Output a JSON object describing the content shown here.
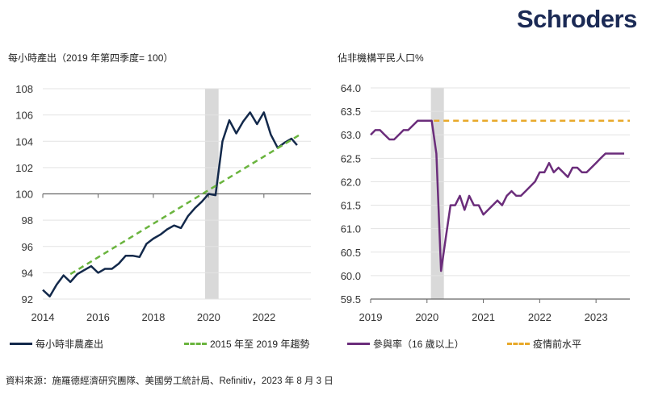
{
  "brand": "Schroders",
  "source": "資料來源：施羅德經濟研究團隊、美國勞工統計局、Refinitiv，2023 年 8 月 3 日",
  "colors": {
    "navy": "#13294b",
    "green": "#6ab43e",
    "purple": "#6b2d7b",
    "orange": "#e8a92a",
    "shade": "#d9d9d9",
    "grid": "#e3e3e3"
  },
  "chart_data": [
    {
      "type": "line",
      "title": "每小時產出（2019 年第四季度= 100）",
      "xlim": [
        2014,
        2023.7
      ],
      "ylim": [
        92,
        108
      ],
      "xticks": [
        "2014",
        "2016",
        "2018",
        "2020",
        "2022"
      ],
      "yticks": [
        "92",
        "94",
        "96",
        "98",
        "100",
        "102",
        "104",
        "106",
        "108"
      ],
      "shaded": [
        2019.87,
        2020.36
      ],
      "series": [
        {
          "name": "每小時非農產出",
          "style": "solid",
          "color": "#13294b",
          "x": [
            2014,
            2014.25,
            2014.5,
            2014.75,
            2015,
            2015.25,
            2015.5,
            2015.75,
            2016,
            2016.25,
            2016.5,
            2016.75,
            2017,
            2017.25,
            2017.5,
            2017.75,
            2018,
            2018.25,
            2018.5,
            2018.75,
            2019,
            2019.25,
            2019.5,
            2019.75,
            2020,
            2020.25,
            2020.5,
            2020.75,
            2021,
            2021.25,
            2021.5,
            2021.75,
            2022,
            2022.25,
            2022.5,
            2022.75,
            2023,
            2023.2
          ],
          "y": [
            92.7,
            92.2,
            93.1,
            93.8,
            93.3,
            93.9,
            94.2,
            94.5,
            94.0,
            94.3,
            94.3,
            94.7,
            95.3,
            95.3,
            95.2,
            96.2,
            96.6,
            96.9,
            97.3,
            97.6,
            97.4,
            98.3,
            98.9,
            99.4,
            100.0,
            99.9,
            104.0,
            105.6,
            104.6,
            105.5,
            106.2,
            105.3,
            106.2,
            104.5,
            103.5,
            103.9,
            104.2,
            103.7
          ]
        },
        {
          "name": "2015 年至 2019 年趨勢",
          "style": "dashed",
          "color": "#6ab43e",
          "x": [
            2015,
            2023.3
          ],
          "y": [
            93.9,
            104.5
          ]
        }
      ]
    },
    {
      "type": "line",
      "title": "佔非機構平民人口%",
      "xlim": [
        2019,
        2023.6
      ],
      "ylim": [
        59.5,
        64.0
      ],
      "xticks": [
        "2019",
        "2020",
        "2021",
        "2022",
        "2023"
      ],
      "yticks": [
        "59.5",
        "60.0",
        "60.5",
        "61.0",
        "61.5",
        "62.0",
        "62.5",
        "63.0",
        "63.5",
        "64.0"
      ],
      "shaded": [
        2020.07,
        2020.3
      ],
      "series": [
        {
          "name": "參與率（16 歲以上）",
          "style": "solid",
          "color": "#6b2d7b",
          "x_start": 2019,
          "x_step_months": 1,
          "y": [
            63.0,
            63.1,
            63.1,
            63.0,
            62.9,
            62.9,
            63.0,
            63.1,
            63.1,
            63.2,
            63.3,
            63.3,
            63.3,
            63.3,
            62.6,
            60.1,
            60.8,
            61.5,
            61.5,
            61.7,
            61.4,
            61.7,
            61.5,
            61.5,
            61.3,
            61.4,
            61.5,
            61.6,
            61.5,
            61.7,
            61.8,
            61.7,
            61.7,
            61.8,
            61.9,
            62.0,
            62.2,
            62.2,
            62.4,
            62.2,
            62.3,
            62.2,
            62.1,
            62.3,
            62.3,
            62.2,
            62.2,
            62.3,
            62.4,
            62.5,
            62.6,
            62.6,
            62.6,
            62.6,
            62.6
          ]
        },
        {
          "name": "疫情前水平",
          "style": "dashed",
          "color": "#e8a92a",
          "x": [
            2020.12,
            2023.6
          ],
          "y": [
            63.3,
            63.3
          ]
        }
      ]
    }
  ]
}
